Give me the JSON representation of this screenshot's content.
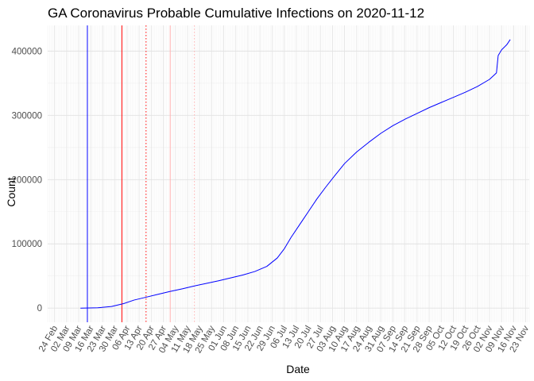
{
  "chart_data": {
    "type": "line",
    "title": "GA Coronavirus Probable Cumulative Infections on 2020-11-12",
    "xlabel": "Date",
    "ylabel": "Count",
    "xlim": [
      "2020-02-20",
      "2020-11-25"
    ],
    "ylim": [
      -22000,
      440000
    ],
    "grid": true,
    "y_ticks": [
      0,
      100000,
      200000,
      300000,
      400000
    ],
    "y_tick_labels": [
      "0",
      "100000",
      "200000",
      "300000",
      "400000"
    ],
    "x_tick_dates": [
      "2020-02-24",
      "2020-03-02",
      "2020-03-09",
      "2020-03-16",
      "2020-03-23",
      "2020-03-30",
      "2020-04-06",
      "2020-04-13",
      "2020-04-20",
      "2020-04-27",
      "2020-05-04",
      "2020-05-11",
      "2020-05-18",
      "2020-05-25",
      "2020-06-01",
      "2020-06-08",
      "2020-06-15",
      "2020-06-22",
      "2020-06-29",
      "2020-07-06",
      "2020-07-13",
      "2020-07-20",
      "2020-07-27",
      "2020-08-03",
      "2020-08-10",
      "2020-08-17",
      "2020-08-24",
      "2020-08-31",
      "2020-09-07",
      "2020-09-14",
      "2020-09-21",
      "2020-09-28",
      "2020-10-05",
      "2020-10-12",
      "2020-10-19",
      "2020-10-26",
      "2020-11-02",
      "2020-11-09",
      "2020-11-16",
      "2020-11-23"
    ],
    "x_tick_labels": [
      "24 Feb",
      "02 Mar",
      "09 Mar",
      "16 Mar",
      "23 Mar",
      "30 Mar",
      "06 Apr",
      "13 Apr",
      "20 Apr",
      "27 Apr",
      "04 May",
      "11 May",
      "18 May",
      "25 May",
      "01 Jun",
      "08 Jun",
      "15 Jun",
      "22 Jun",
      "29 Jun",
      "06 Jul",
      "13 Jul",
      "20 Jul",
      "27 Jul",
      "03 Aug",
      "10 Aug",
      "17 Aug",
      "24 Aug",
      "31 Aug",
      "07 Sep",
      "14 Sep",
      "21 Sep",
      "28 Sep",
      "05 Oct",
      "12 Oct",
      "19 Oct",
      "26 Oct",
      "02 Nov",
      "09 Nov",
      "16 Nov",
      "23 Nov"
    ],
    "reference_lines": [
      {
        "date": "2020-03-14",
        "color": "#0000ff",
        "style": "solid"
      },
      {
        "date": "2020-04-03",
        "color": "#ff0000",
        "style": "solid"
      },
      {
        "date": "2020-04-17",
        "color": "#ff0000",
        "style": "dotted"
      },
      {
        "date": "2020-05-01",
        "color": "#ffb0b0",
        "style": "solid"
      },
      {
        "date": "2020-05-15",
        "color": "#ffb0b0",
        "style": "dotted"
      }
    ],
    "series": [
      {
        "color": "#0000ff",
        "points": [
          [
            "2020-03-10",
            0
          ],
          [
            "2020-03-20",
            500
          ],
          [
            "2020-03-28",
            2500
          ],
          [
            "2020-04-04",
            7000
          ],
          [
            "2020-04-10",
            12500
          ],
          [
            "2020-04-17",
            17000
          ],
          [
            "2020-04-24",
            21500
          ],
          [
            "2020-05-01",
            26000
          ],
          [
            "2020-05-08",
            30000
          ],
          [
            "2020-05-15",
            34500
          ],
          [
            "2020-05-22",
            38500
          ],
          [
            "2020-05-29",
            42500
          ],
          [
            "2020-06-05",
            47000
          ],
          [
            "2020-06-12",
            51500
          ],
          [
            "2020-06-19",
            57000
          ],
          [
            "2020-06-26",
            65000
          ],
          [
            "2020-07-02",
            78000
          ],
          [
            "2020-07-06",
            92000
          ],
          [
            "2020-07-10",
            110000
          ],
          [
            "2020-07-15",
            130000
          ],
          [
            "2020-07-20",
            150000
          ],
          [
            "2020-07-25",
            170000
          ],
          [
            "2020-07-30",
            188000
          ],
          [
            "2020-08-04",
            205000
          ],
          [
            "2020-08-10",
            225000
          ],
          [
            "2020-08-17",
            243000
          ],
          [
            "2020-08-24",
            258000
          ],
          [
            "2020-08-31",
            272000
          ],
          [
            "2020-09-07",
            284000
          ],
          [
            "2020-09-14",
            294000
          ],
          [
            "2020-09-21",
            303000
          ],
          [
            "2020-09-28",
            312000
          ],
          [
            "2020-10-05",
            320000
          ],
          [
            "2020-10-12",
            328000
          ],
          [
            "2020-10-19",
            336000
          ],
          [
            "2020-10-26",
            345000
          ],
          [
            "2020-11-02",
            356000
          ],
          [
            "2020-11-06",
            366000
          ],
          [
            "2020-11-07",
            393000
          ],
          [
            "2020-11-09",
            402000
          ],
          [
            "2020-11-12",
            410000
          ],
          [
            "2020-11-14",
            418000
          ]
        ]
      }
    ]
  }
}
